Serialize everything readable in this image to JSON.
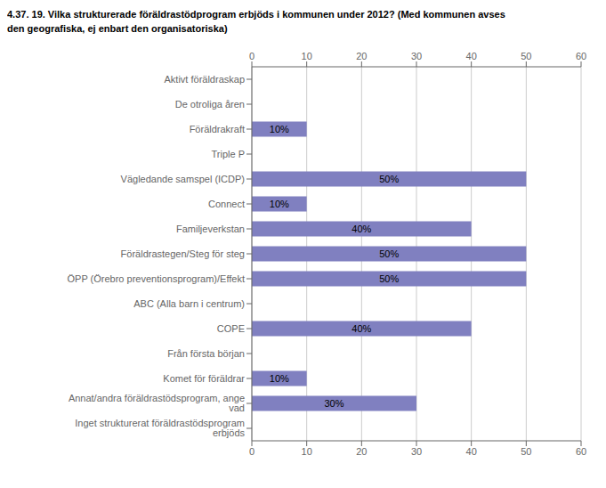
{
  "chart_data": {
    "type": "bar",
    "orientation": "horizontal",
    "title": "4.37. 19. Vilka strukturerade föräldrastödprogram erbjöds i kommunen under 2012? (Med kommunen avses\nden geografiska, ej enbart den organisatoriska)",
    "categories": [
      "Inget strukturerat föräldrastödsprogram erbjöds",
      "Annat/andra föräldrastödsprogram, ange vad",
      "Komet för föräldrar",
      "Från första början",
      "COPE",
      "ABC (Alla barn i centrum)",
      "ÖPP (Örebro preventionsprogram)/Effekt",
      "Föräldrastegen/Steg för steg",
      "Familjeverkstan",
      "Connect",
      "Vägledande samspel (ICDP)",
      "Triple P",
      "Föräldrakraft",
      "De otroliga åren",
      "Aktivt föräldraskap"
    ],
    "values": [
      0,
      30,
      10,
      0,
      40,
      0,
      50,
      50,
      40,
      10,
      50,
      0,
      10,
      0,
      0
    ],
    "value_labels": [
      null,
      "30%",
      "10%",
      null,
      "40%",
      null,
      "50%",
      "50%",
      "40%",
      "10%",
      "50%",
      null,
      "10%",
      null,
      null
    ],
    "data_labels": true,
    "color": "#8080c0",
    "xlim": [
      0,
      60
    ],
    "xticks": [
      0,
      10,
      20,
      30,
      40,
      50,
      60
    ],
    "grid": true
  }
}
